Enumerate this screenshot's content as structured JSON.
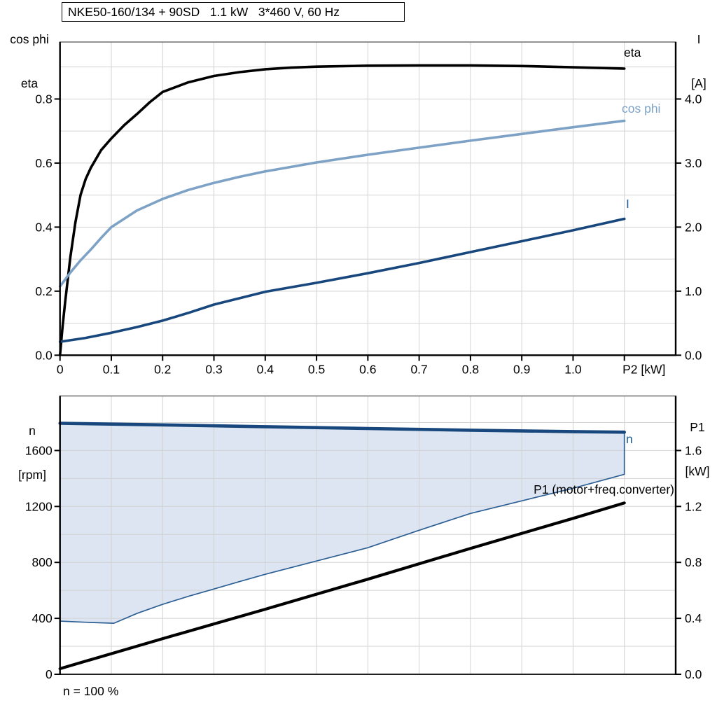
{
  "title_box": {
    "text": "NKE50-160/134 + 90SD   1.1 kW   3*460 V, 60 Hz"
  },
  "colors": {
    "background": "#ffffff",
    "grid": "#d2d2d2",
    "frame": "#000000",
    "frame_top": "#6e6e6e",
    "area_fill": "#dce5f1",
    "area_border": "#2d5f94",
    "blue_label": "#1f5c99"
  },
  "chart_data": [
    {
      "type": "line",
      "title": "NKE50-160/134 + 90SD   1.1 kW   3*460 V, 60 Hz",
      "x_axis": {
        "label": "P2 [kW]",
        "min": 0,
        "max": 1.2,
        "tick_step": 0.1,
        "tick_labels": [
          "0",
          "0.1",
          "0.2",
          "0.3",
          "0.4",
          "0.5",
          "0.6",
          "0.7",
          "0.8",
          "0.9",
          "1.0"
        ]
      },
      "y_left": {
        "label_lines": [
          "cos phi",
          "eta"
        ],
        "min": 0,
        "max": 0.978,
        "grid_step": 0.1,
        "tick_values": [
          0.0,
          0.2,
          0.4,
          0.6,
          0.8
        ],
        "tick_labels": [
          "0.0",
          "0.2",
          "0.4",
          "0.6",
          "0.8"
        ]
      },
      "y_right": {
        "label_lines": [
          "I",
          "[A]"
        ],
        "min": 0,
        "max": 4.89,
        "tick_values": [
          0.0,
          1.0,
          2.0,
          3.0,
          4.0
        ],
        "tick_labels": [
          "0.0",
          "1.0",
          "2.0",
          "3.0",
          "4.0"
        ]
      },
      "series": [
        {
          "name": "eta",
          "axis": "left",
          "color": "#000000",
          "label_color": "#000000",
          "points": [
            [
              0,
              0
            ],
            [
              0.005,
              0.09
            ],
            [
              0.01,
              0.165
            ],
            [
              0.02,
              0.305
            ],
            [
              0.03,
              0.415
            ],
            [
              0.04,
              0.5
            ],
            [
              0.05,
              0.55
            ],
            [
              0.06,
              0.585
            ],
            [
              0.08,
              0.64
            ],
            [
              0.1,
              0.677
            ],
            [
              0.125,
              0.718
            ],
            [
              0.15,
              0.753
            ],
            [
              0.175,
              0.79
            ],
            [
              0.2,
              0.822
            ],
            [
              0.25,
              0.852
            ],
            [
              0.3,
              0.872
            ],
            [
              0.35,
              0.884
            ],
            [
              0.4,
              0.893
            ],
            [
              0.45,
              0.898
            ],
            [
              0.5,
              0.901
            ],
            [
              0.6,
              0.904
            ],
            [
              0.7,
              0.905
            ],
            [
              0.8,
              0.905
            ],
            [
              0.9,
              0.903
            ],
            [
              1.0,
              0.899
            ],
            [
              1.1,
              0.895
            ]
          ]
        },
        {
          "name": "cos phi",
          "axis": "left",
          "color": "#7da2c6",
          "label_color": "#7da2c6",
          "points": [
            [
              0,
              0.215
            ],
            [
              0.02,
              0.258
            ],
            [
              0.04,
              0.296
            ],
            [
              0.06,
              0.33
            ],
            [
              0.08,
              0.366
            ],
            [
              0.1,
              0.4
            ],
            [
              0.15,
              0.452
            ],
            [
              0.2,
              0.488
            ],
            [
              0.25,
              0.516
            ],
            [
              0.3,
              0.538
            ],
            [
              0.35,
              0.557
            ],
            [
              0.4,
              0.574
            ],
            [
              0.5,
              0.602
            ],
            [
              0.6,
              0.626
            ],
            [
              0.7,
              0.648
            ],
            [
              0.8,
              0.67
            ],
            [
              0.9,
              0.691
            ],
            [
              1.0,
              0.712
            ],
            [
              1.1,
              0.732
            ]
          ]
        },
        {
          "name": "I",
          "axis": "right",
          "color": "#17477d",
          "label_color": "#1f5c99",
          "points": [
            [
              0,
              0.21
            ],
            [
              0.05,
              0.27
            ],
            [
              0.1,
              0.35
            ],
            [
              0.15,
              0.44
            ],
            [
              0.2,
              0.54
            ],
            [
              0.25,
              0.66
            ],
            [
              0.3,
              0.79
            ],
            [
              0.35,
              0.89
            ],
            [
              0.4,
              0.99
            ],
            [
              0.5,
              1.13
            ],
            [
              0.6,
              1.28
            ],
            [
              0.7,
              1.44
            ],
            [
              0.8,
              1.61
            ],
            [
              0.9,
              1.78
            ],
            [
              1.0,
              1.95
            ],
            [
              1.1,
              2.13
            ]
          ]
        }
      ]
    },
    {
      "type": "line",
      "x_axis": {
        "label": "",
        "min": 0,
        "max": 1.2,
        "tick_step": 0.1,
        "tick_labels": []
      },
      "y_left": {
        "label_lines": [
          "n",
          "[rpm]"
        ],
        "min": 0,
        "max": 1990,
        "grid_step": 200,
        "tick_values": [
          0,
          400,
          800,
          1200,
          1600
        ],
        "tick_labels": [
          "0",
          "400",
          "800",
          "1200",
          "1600"
        ]
      },
      "y_right": {
        "label_lines": [
          "P1",
          "[kW]"
        ],
        "min": 0,
        "max": 1.99,
        "tick_values": [
          0.0,
          0.4,
          0.8,
          1.2,
          1.6
        ],
        "tick_labels": [
          "0.0",
          "0.4",
          "0.8",
          "1.2",
          "1.6"
        ]
      },
      "area": {
        "name": "speed-control-range",
        "axis": "left",
        "upper": [
          [
            0,
            1795
          ],
          [
            0.2,
            1783
          ],
          [
            0.4,
            1770
          ],
          [
            0.6,
            1757
          ],
          [
            0.8,
            1745
          ],
          [
            1.0,
            1735
          ],
          [
            1.1,
            1731
          ]
        ],
        "lower": [
          [
            0,
            380
          ],
          [
            0.05,
            372
          ],
          [
            0.105,
            365
          ],
          [
            0.15,
            435
          ],
          [
            0.2,
            500
          ],
          [
            0.25,
            557
          ],
          [
            0.3,
            610
          ],
          [
            0.35,
            663
          ],
          [
            0.4,
            715
          ],
          [
            0.5,
            810
          ],
          [
            0.6,
            905
          ],
          [
            0.7,
            1030
          ],
          [
            0.8,
            1150
          ],
          [
            0.9,
            1240
          ],
          [
            1.0,
            1330
          ],
          [
            1.1,
            1430
          ]
        ]
      },
      "series": [
        {
          "name": "n",
          "axis": "left",
          "color": "#17477d",
          "label_color": "#1f5c99",
          "points": [
            [
              0,
              1795
            ],
            [
              0.2,
              1783
            ],
            [
              0.4,
              1770
            ],
            [
              0.6,
              1757
            ],
            [
              0.8,
              1745
            ],
            [
              1.0,
              1735
            ],
            [
              1.1,
              1731
            ]
          ]
        },
        {
          "name": "P1 (motor+freq.converter)",
          "axis": "right",
          "color": "#000000",
          "label_color": "#000000",
          "points": [
            [
              0,
              0.04
            ],
            [
              0.2,
              0.255
            ],
            [
              0.4,
              0.465
            ],
            [
              0.6,
              0.68
            ],
            [
              0.8,
              0.9
            ],
            [
              1.0,
              1.115
            ],
            [
              1.1,
              1.225
            ]
          ]
        }
      ],
      "footnote": "n = 100 %"
    }
  ]
}
